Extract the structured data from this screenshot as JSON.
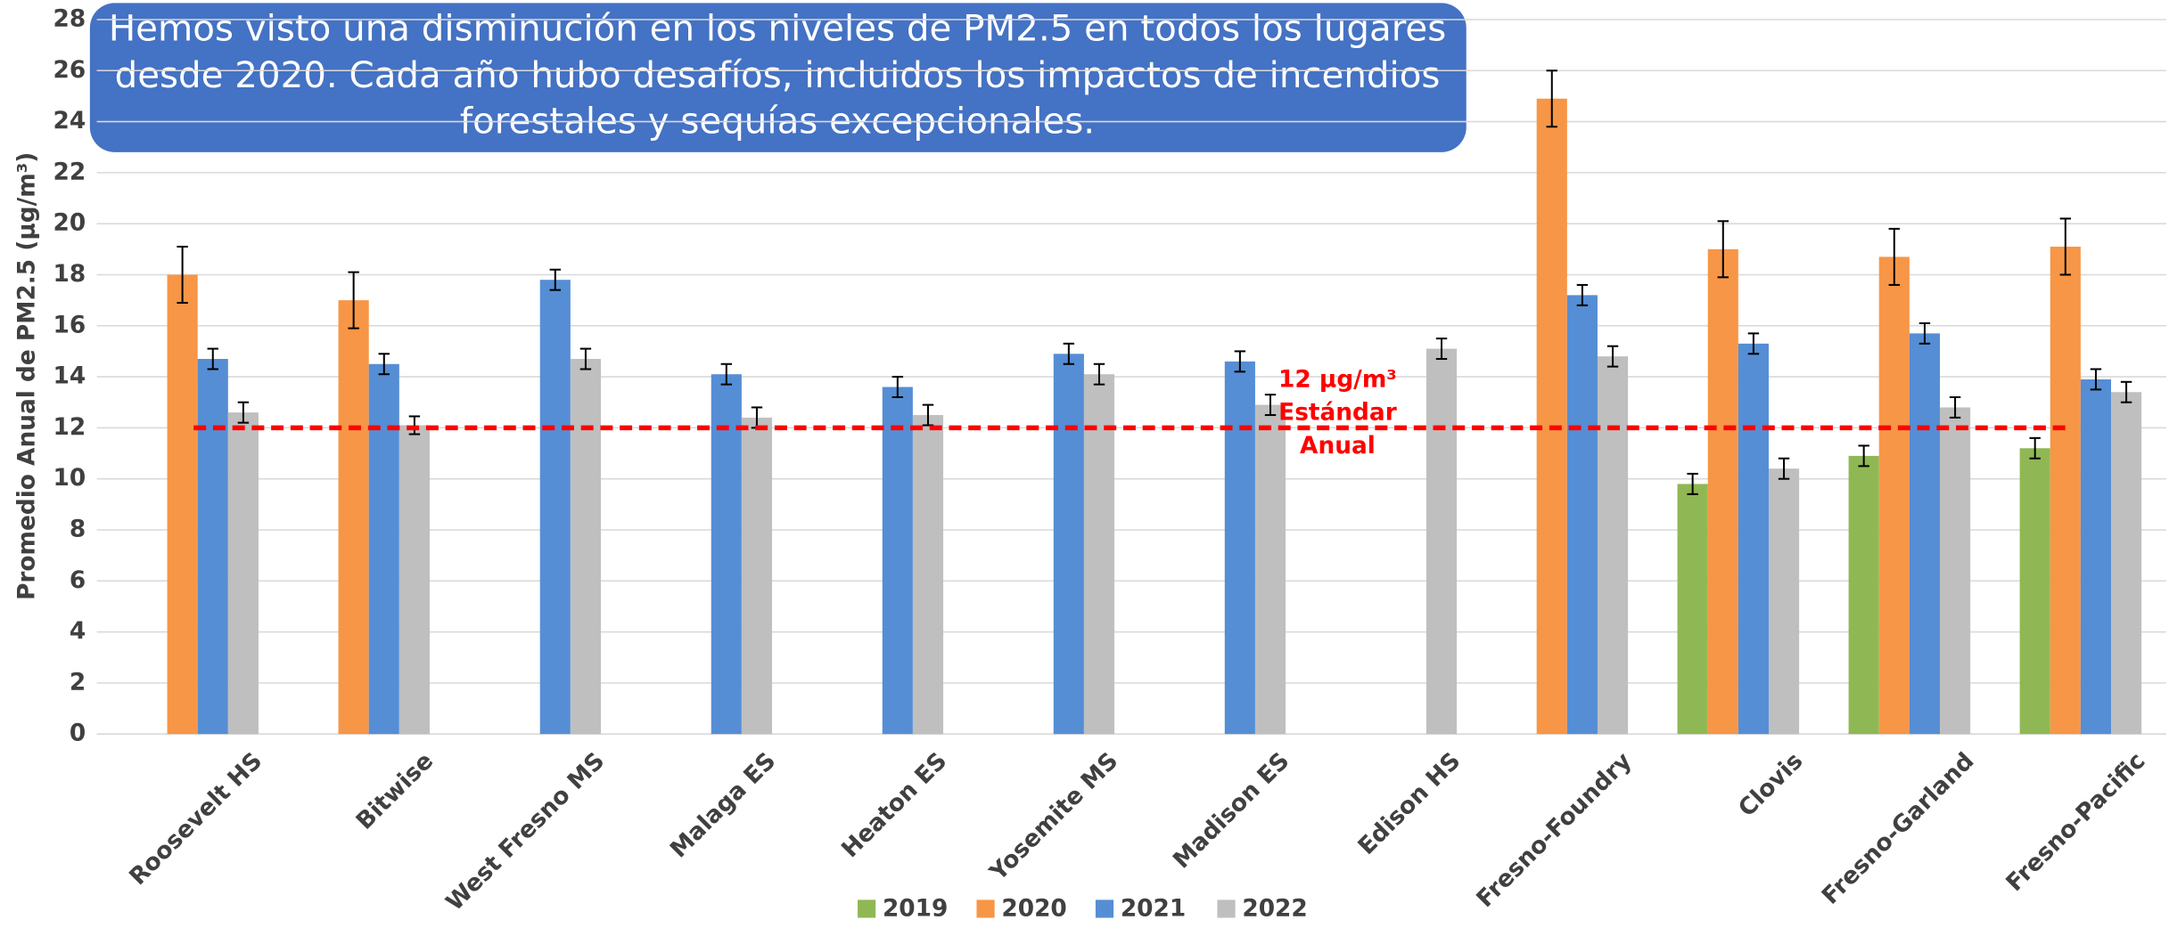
{
  "chart_data": {
    "type": "bar",
    "title": [
      "Hemos visto una disminución en los niveles de PM2.5 en todos los lugares",
      "desde 2020. Cada año hubo desafíos, incluidos los impactos de incendios",
      "forestales y sequías excepcionales."
    ],
    "y_label": "Promedio Anual de PM2.5 (µg/m³)",
    "categories": [
      "Roosevelt HS",
      "Bitwise",
      "West Fresno MS",
      "Malaga ES",
      "Heaton ES",
      "Yosemite MS",
      "Madison ES",
      "Edison HS",
      "Fresno-Foundry",
      "Clovis",
      "Fresno-Garland",
      "Fresno-Pacific"
    ],
    "series": [
      {
        "name": "2019",
        "color": "#8fb854",
        "values": [
          null,
          null,
          null,
          null,
          null,
          null,
          null,
          null,
          null,
          9.8,
          10.9,
          11.2
        ],
        "errors": [
          null,
          null,
          null,
          null,
          null,
          null,
          null,
          null,
          null,
          0.4,
          0.4,
          0.4
        ]
      },
      {
        "name": "2020",
        "color": "#f79646",
        "values": [
          18,
          17,
          null,
          null,
          null,
          null,
          null,
          null,
          24.9,
          19,
          18.7,
          19.1
        ],
        "errors": [
          1.1,
          1.1,
          null,
          null,
          null,
          null,
          null,
          null,
          1.1,
          1.1,
          1.1,
          1.1
        ]
      },
      {
        "name": "2021",
        "color": "#558ed5",
        "values": [
          14.7,
          14.5,
          17.8,
          14.1,
          13.6,
          14.9,
          14.6,
          null,
          17.2,
          15.3,
          15.7,
          13.9
        ],
        "errors": [
          0.4,
          0.4,
          0.4,
          0.4,
          0.4,
          0.4,
          0.4,
          null,
          0.4,
          0.4,
          0.4,
          0.4
        ]
      },
      {
        "name": "2022",
        "color": "#bfbfbf",
        "values": [
          12.6,
          12.1,
          14.7,
          12.4,
          12.5,
          14.1,
          12.9,
          15.1,
          14.8,
          10.4,
          12.8,
          13.4
        ],
        "errors": [
          0.4,
          0.35,
          0.4,
          0.4,
          0.4,
          0.4,
          0.4,
          0.4,
          0.4,
          0.4,
          0.4,
          0.4
        ]
      }
    ],
    "reference_line": {
      "value": 12,
      "color": "#ff0000",
      "label": [
        "12 µg/m³",
        "Estándar",
        "Anual"
      ]
    },
    "ylim": [
      0,
      28
    ],
    "yticks": [
      0,
      2,
      4,
      6,
      8,
      10,
      12,
      14,
      16,
      18,
      20,
      22,
      24,
      26,
      28
    ],
    "grid": true,
    "legend": "bottom"
  }
}
